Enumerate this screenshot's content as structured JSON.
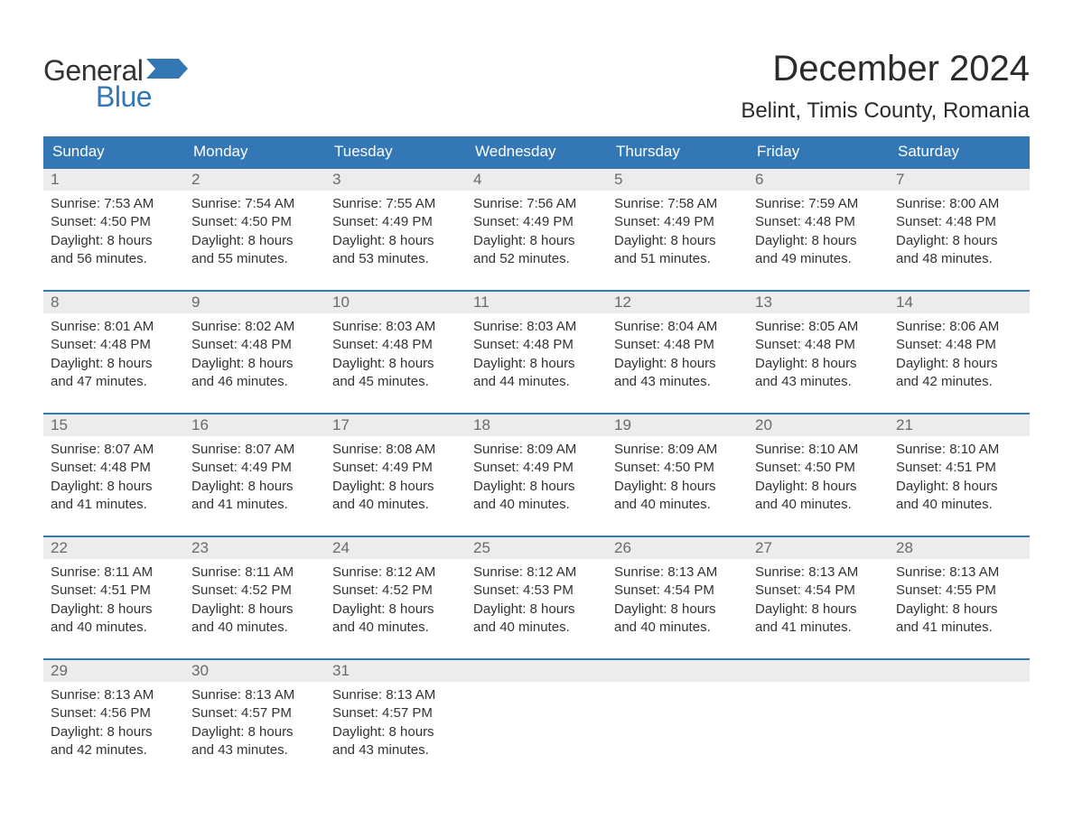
{
  "logo": {
    "line1": "General",
    "line2": "Blue",
    "line1_color": "#333333",
    "line2_color": "#3477b5",
    "flag_color": "#3477b5"
  },
  "title": "December 2024",
  "location": "Belint, Timis County, Romania",
  "colors": {
    "header_bg": "#3477b5",
    "header_text": "#ffffff",
    "daynum_bg": "#ececec",
    "daynum_text": "#6a6a6a",
    "body_text": "#333333",
    "week_separator": "#3477b5",
    "background": "#ffffff"
  },
  "typography": {
    "body_family": "Arial",
    "title_fontsize": 40,
    "location_fontsize": 24,
    "dow_fontsize": 17,
    "daynum_fontsize": 17,
    "detail_fontsize": 15
  },
  "dow": [
    "Sunday",
    "Monday",
    "Tuesday",
    "Wednesday",
    "Thursday",
    "Friday",
    "Saturday"
  ],
  "weeks": [
    [
      {
        "n": "1",
        "sr": "Sunrise: 7:53 AM",
        "ss": "Sunset: 4:50 PM",
        "d1": "Daylight: 8 hours",
        "d2": "and 56 minutes."
      },
      {
        "n": "2",
        "sr": "Sunrise: 7:54 AM",
        "ss": "Sunset: 4:50 PM",
        "d1": "Daylight: 8 hours",
        "d2": "and 55 minutes."
      },
      {
        "n": "3",
        "sr": "Sunrise: 7:55 AM",
        "ss": "Sunset: 4:49 PM",
        "d1": "Daylight: 8 hours",
        "d2": "and 53 minutes."
      },
      {
        "n": "4",
        "sr": "Sunrise: 7:56 AM",
        "ss": "Sunset: 4:49 PM",
        "d1": "Daylight: 8 hours",
        "d2": "and 52 minutes."
      },
      {
        "n": "5",
        "sr": "Sunrise: 7:58 AM",
        "ss": "Sunset: 4:49 PM",
        "d1": "Daylight: 8 hours",
        "d2": "and 51 minutes."
      },
      {
        "n": "6",
        "sr": "Sunrise: 7:59 AM",
        "ss": "Sunset: 4:48 PM",
        "d1": "Daylight: 8 hours",
        "d2": "and 49 minutes."
      },
      {
        "n": "7",
        "sr": "Sunrise: 8:00 AM",
        "ss": "Sunset: 4:48 PM",
        "d1": "Daylight: 8 hours",
        "d2": "and 48 minutes."
      }
    ],
    [
      {
        "n": "8",
        "sr": "Sunrise: 8:01 AM",
        "ss": "Sunset: 4:48 PM",
        "d1": "Daylight: 8 hours",
        "d2": "and 47 minutes."
      },
      {
        "n": "9",
        "sr": "Sunrise: 8:02 AM",
        "ss": "Sunset: 4:48 PM",
        "d1": "Daylight: 8 hours",
        "d2": "and 46 minutes."
      },
      {
        "n": "10",
        "sr": "Sunrise: 8:03 AM",
        "ss": "Sunset: 4:48 PM",
        "d1": "Daylight: 8 hours",
        "d2": "and 45 minutes."
      },
      {
        "n": "11",
        "sr": "Sunrise: 8:03 AM",
        "ss": "Sunset: 4:48 PM",
        "d1": "Daylight: 8 hours",
        "d2": "and 44 minutes."
      },
      {
        "n": "12",
        "sr": "Sunrise: 8:04 AM",
        "ss": "Sunset: 4:48 PM",
        "d1": "Daylight: 8 hours",
        "d2": "and 43 minutes."
      },
      {
        "n": "13",
        "sr": "Sunrise: 8:05 AM",
        "ss": "Sunset: 4:48 PM",
        "d1": "Daylight: 8 hours",
        "d2": "and 43 minutes."
      },
      {
        "n": "14",
        "sr": "Sunrise: 8:06 AM",
        "ss": "Sunset: 4:48 PM",
        "d1": "Daylight: 8 hours",
        "d2": "and 42 minutes."
      }
    ],
    [
      {
        "n": "15",
        "sr": "Sunrise: 8:07 AM",
        "ss": "Sunset: 4:48 PM",
        "d1": "Daylight: 8 hours",
        "d2": "and 41 minutes."
      },
      {
        "n": "16",
        "sr": "Sunrise: 8:07 AM",
        "ss": "Sunset: 4:49 PM",
        "d1": "Daylight: 8 hours",
        "d2": "and 41 minutes."
      },
      {
        "n": "17",
        "sr": "Sunrise: 8:08 AM",
        "ss": "Sunset: 4:49 PM",
        "d1": "Daylight: 8 hours",
        "d2": "and 40 minutes."
      },
      {
        "n": "18",
        "sr": "Sunrise: 8:09 AM",
        "ss": "Sunset: 4:49 PM",
        "d1": "Daylight: 8 hours",
        "d2": "and 40 minutes."
      },
      {
        "n": "19",
        "sr": "Sunrise: 8:09 AM",
        "ss": "Sunset: 4:50 PM",
        "d1": "Daylight: 8 hours",
        "d2": "and 40 minutes."
      },
      {
        "n": "20",
        "sr": "Sunrise: 8:10 AM",
        "ss": "Sunset: 4:50 PM",
        "d1": "Daylight: 8 hours",
        "d2": "and 40 minutes."
      },
      {
        "n": "21",
        "sr": "Sunrise: 8:10 AM",
        "ss": "Sunset: 4:51 PM",
        "d1": "Daylight: 8 hours",
        "d2": "and 40 minutes."
      }
    ],
    [
      {
        "n": "22",
        "sr": "Sunrise: 8:11 AM",
        "ss": "Sunset: 4:51 PM",
        "d1": "Daylight: 8 hours",
        "d2": "and 40 minutes."
      },
      {
        "n": "23",
        "sr": "Sunrise: 8:11 AM",
        "ss": "Sunset: 4:52 PM",
        "d1": "Daylight: 8 hours",
        "d2": "and 40 minutes."
      },
      {
        "n": "24",
        "sr": "Sunrise: 8:12 AM",
        "ss": "Sunset: 4:52 PM",
        "d1": "Daylight: 8 hours",
        "d2": "and 40 minutes."
      },
      {
        "n": "25",
        "sr": "Sunrise: 8:12 AM",
        "ss": "Sunset: 4:53 PM",
        "d1": "Daylight: 8 hours",
        "d2": "and 40 minutes."
      },
      {
        "n": "26",
        "sr": "Sunrise: 8:13 AM",
        "ss": "Sunset: 4:54 PM",
        "d1": "Daylight: 8 hours",
        "d2": "and 40 minutes."
      },
      {
        "n": "27",
        "sr": "Sunrise: 8:13 AM",
        "ss": "Sunset: 4:54 PM",
        "d1": "Daylight: 8 hours",
        "d2": "and 41 minutes."
      },
      {
        "n": "28",
        "sr": "Sunrise: 8:13 AM",
        "ss": "Sunset: 4:55 PM",
        "d1": "Daylight: 8 hours",
        "d2": "and 41 minutes."
      }
    ],
    [
      {
        "n": "29",
        "sr": "Sunrise: 8:13 AM",
        "ss": "Sunset: 4:56 PM",
        "d1": "Daylight: 8 hours",
        "d2": "and 42 minutes."
      },
      {
        "n": "30",
        "sr": "Sunrise: 8:13 AM",
        "ss": "Sunset: 4:57 PM",
        "d1": "Daylight: 8 hours",
        "d2": "and 43 minutes."
      },
      {
        "n": "31",
        "sr": "Sunrise: 8:13 AM",
        "ss": "Sunset: 4:57 PM",
        "d1": "Daylight: 8 hours",
        "d2": "and 43 minutes."
      },
      null,
      null,
      null,
      null
    ]
  ]
}
